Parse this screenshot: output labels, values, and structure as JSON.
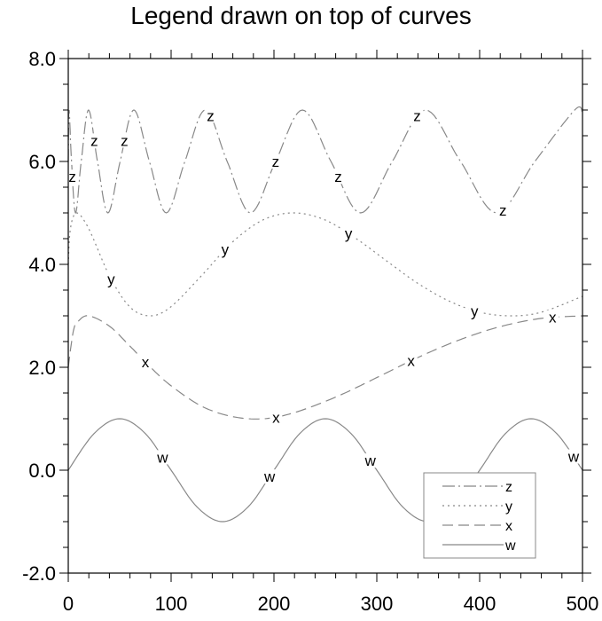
{
  "chart_data": {
    "type": "line",
    "title": "Legend drawn on top of curves",
    "xlabel": "",
    "ylabel": "",
    "xlim": [
      0,
      500
    ],
    "ylim": [
      -2,
      8
    ],
    "x_ticks": [
      0,
      100,
      200,
      300,
      400,
      500
    ],
    "x_tick_labels": [
      "0",
      "100",
      "200",
      "300",
      "400",
      "500"
    ],
    "y_ticks": [
      -2,
      0,
      2,
      4,
      6,
      8
    ],
    "y_tick_labels": [
      "-2.0",
      "0.0",
      "2.0",
      "4.0",
      "6.0",
      "8.0"
    ],
    "grid": false,
    "legend_position": "bottom-right",
    "curve_color": "#888888",
    "series": [
      {
        "name": "z",
        "dash": "dash-dot",
        "label": "z",
        "points": [
          [
            0,
            6
          ],
          [
            0.79,
            7
          ],
          [
            3.15,
            6
          ],
          [
            7.1,
            5
          ],
          [
            12.6,
            6
          ],
          [
            19.7,
            7
          ],
          [
            28.4,
            6
          ],
          [
            38.6,
            5
          ],
          [
            50.4,
            6
          ],
          [
            63.8,
            7
          ],
          [
            78.9,
            6
          ],
          [
            95.3,
            5
          ],
          [
            113.4,
            6
          ],
          [
            133.2,
            7
          ],
          [
            154.5,
            6
          ],
          [
            177.2,
            5
          ],
          [
            201.6,
            6
          ],
          [
            227.7,
            7
          ],
          [
            255.4,
            6
          ],
          [
            284.3,
            5
          ],
          [
            315.1,
            6
          ],
          [
            347.4,
            7
          ],
          [
            381.4,
            6
          ],
          [
            416.6,
            5
          ],
          [
            453.7,
            6
          ],
          [
            492.4,
            7
          ],
          [
            500,
            6.95
          ]
        ]
      },
      {
        "name": "y",
        "dash": "dot",
        "label": "y",
        "points": [
          [
            0,
            4
          ],
          [
            2,
            4.68
          ],
          [
            8,
            5
          ],
          [
            20,
            4.69
          ],
          [
            40,
            3.78
          ],
          [
            60,
            3.17
          ],
          [
            80,
            3.0
          ],
          [
            100,
            3.18
          ],
          [
            130,
            3.79
          ],
          [
            160,
            4.44
          ],
          [
            190,
            4.87
          ],
          [
            220,
            5.0
          ],
          [
            250,
            4.86
          ],
          [
            280,
            4.5
          ],
          [
            310,
            4.06
          ],
          [
            340,
            3.63
          ],
          [
            370,
            3.29
          ],
          [
            400,
            3.07
          ],
          [
            430,
            3.0
          ],
          [
            460,
            3.07
          ],
          [
            500,
            3.38
          ]
        ]
      },
      {
        "name": "x",
        "dash": "dash",
        "label": "x",
        "points": [
          [
            0,
            2
          ],
          [
            5,
            2.71
          ],
          [
            10,
            2.9
          ],
          [
            20,
            3.0
          ],
          [
            40,
            2.8
          ],
          [
            60,
            2.41
          ],
          [
            80,
            2.0
          ],
          [
            100,
            1.64
          ],
          [
            130,
            1.24
          ],
          [
            160,
            1.04
          ],
          [
            190,
            1.0
          ],
          [
            220,
            1.12
          ],
          [
            260,
            1.42
          ],
          [
            300,
            1.8
          ],
          [
            340,
            2.19
          ],
          [
            380,
            2.53
          ],
          [
            420,
            2.79
          ],
          [
            460,
            2.95
          ],
          [
            500,
            3.0
          ]
        ]
      },
      {
        "name": "w",
        "dash": "solid",
        "label": "w",
        "points": [
          [
            0,
            0
          ],
          [
            25,
            0.71
          ],
          [
            50,
            1
          ],
          [
            75,
            0.71
          ],
          [
            100,
            0
          ],
          [
            125,
            -0.71
          ],
          [
            150,
            -1
          ],
          [
            175,
            -0.71
          ],
          [
            200,
            0
          ],
          [
            225,
            0.71
          ],
          [
            250,
            1
          ],
          [
            275,
            0.71
          ],
          [
            300,
            0
          ],
          [
            325,
            -0.71
          ],
          [
            350,
            -1
          ],
          [
            375,
            -0.71
          ],
          [
            400,
            0
          ],
          [
            425,
            0.71
          ],
          [
            450,
            1
          ],
          [
            475,
            0.71
          ],
          [
            500,
            0
          ]
        ]
      }
    ]
  }
}
